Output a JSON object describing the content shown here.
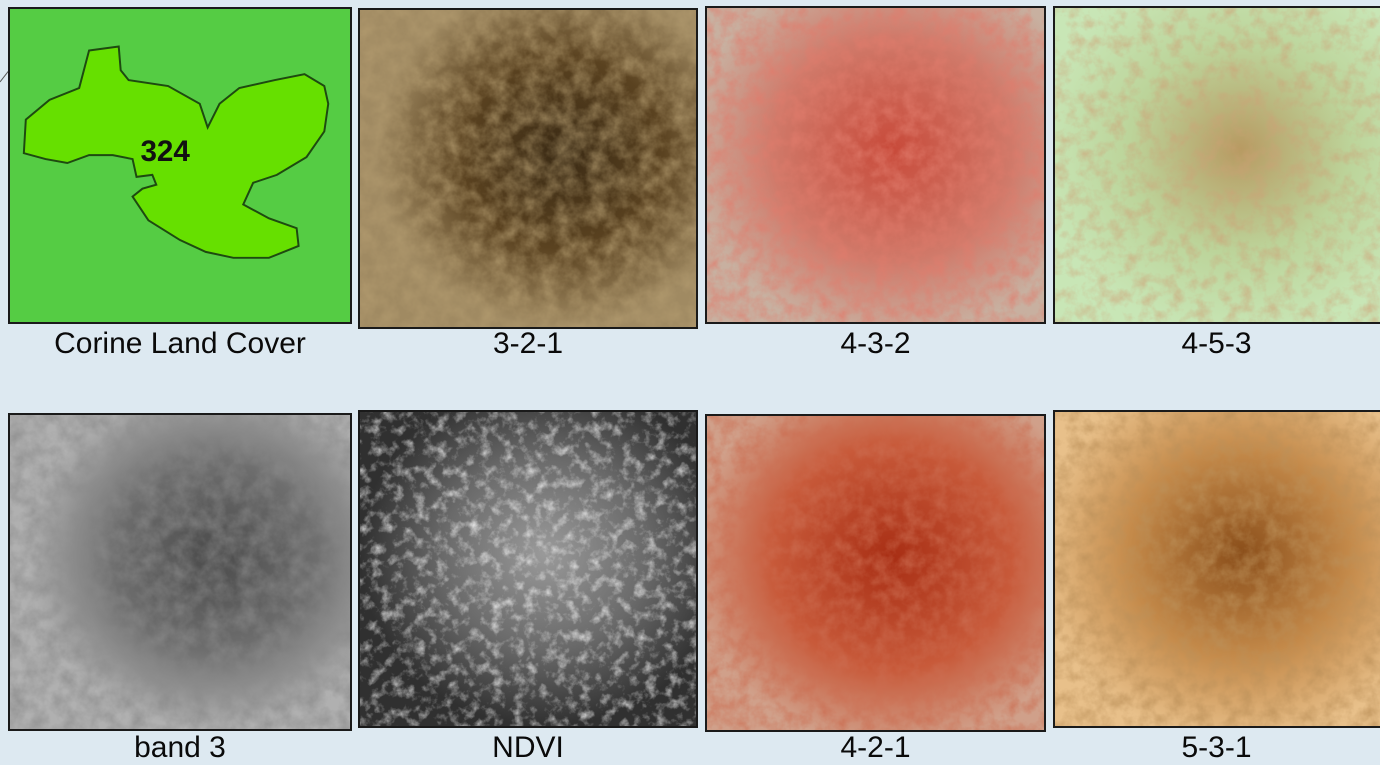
{
  "panels": [
    {
      "caption": "Corine Land Cover",
      "icon": "land-cover-map",
      "region_label": "324"
    },
    {
      "caption": "3-2-1",
      "icon": "satellite-composite"
    },
    {
      "caption": "4-3-2",
      "icon": "satellite-composite"
    },
    {
      "caption": "4-5-3",
      "icon": "satellite-composite"
    },
    {
      "caption": "band 3",
      "icon": "satellite-band"
    },
    {
      "caption": "NDVI",
      "icon": "satellite-index"
    },
    {
      "caption": "4-2-1",
      "icon": "satellite-composite"
    },
    {
      "caption": "5-3-1",
      "icon": "satellite-composite"
    }
  ],
  "colors": {
    "background": "#dde9f1",
    "corine_bg": "#55cc44",
    "corine_region": "#66e000",
    "rgb321": "#6b4e22",
    "rgb432": "#c06a5a",
    "rgb453": "#b8d8a0",
    "band3": "#7a7a7a",
    "ndvi": "#4a4a4a",
    "rgb421": "#b8502e",
    "rgb531": "#c98a4a"
  }
}
